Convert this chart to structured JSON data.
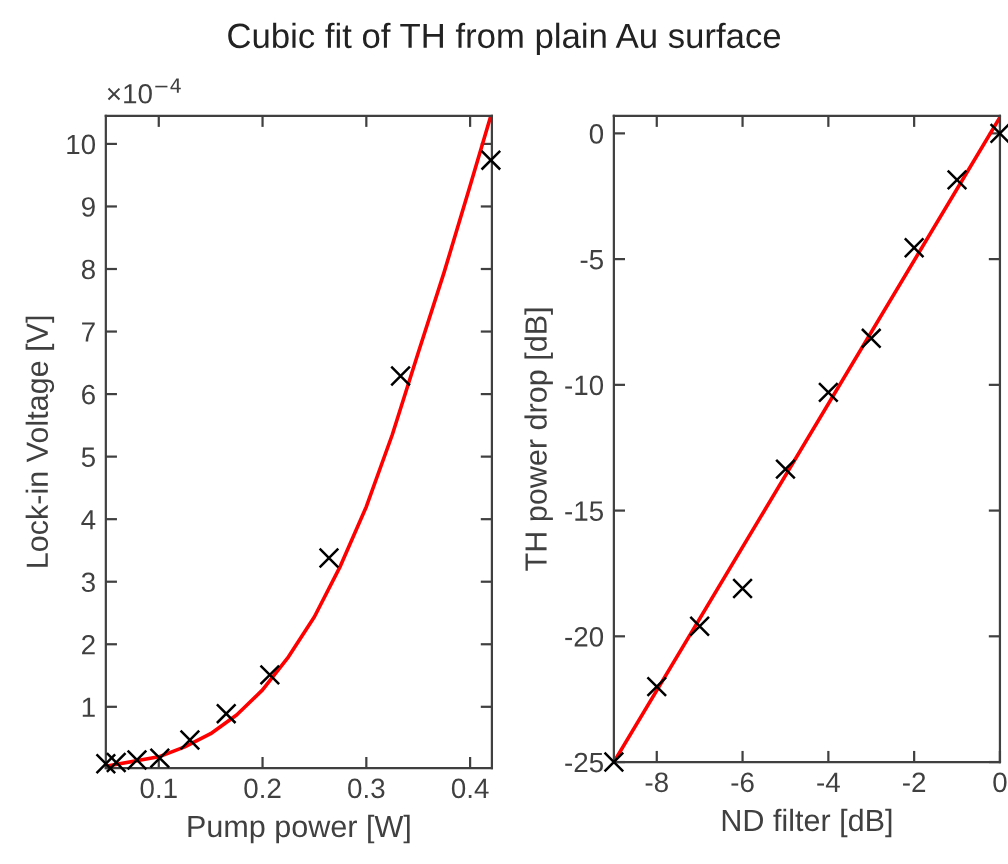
{
  "chart_data": [
    {
      "type": "scatter",
      "title": "Cubic fit of TH from plain Au surface",
      "xlabel": "Pump power [W]",
      "ylabel": "Lock-in Voltage [V]",
      "annotations": [
        "×10$^{−4}$"
      ],
      "xlim": [
        0.049,
        0.421
      ],
      "xticks": [
        0.1,
        0.2,
        0.3,
        0.4
      ],
      "ylim": [
        0.02,
        10.45
      ],
      "yticks": [
        1,
        2,
        3,
        4,
        5,
        6,
        7,
        8,
        9,
        10
      ],
      "grid": false,
      "series": [
        {
          "marker": "cross",
          "color": "#000000",
          "x": [
            0.049,
            0.059,
            0.079,
            0.101,
            0.13,
            0.165,
            0.207,
            0.264,
            0.333,
            0.42
          ],
          "values": [
            0.09,
            0.11,
            0.15,
            0.18,
            0.47,
            0.89,
            1.51,
            3.38,
            6.29,
            9.74
          ]
        },
        {
          "type": "line",
          "color": "#ff0000",
          "x": [
            0.049,
            0.1,
            0.125,
            0.15,
            0.175,
            0.2,
            0.225,
            0.25,
            0.275,
            0.3,
            0.325,
            0.35,
            0.375,
            0.4,
            0.42
          ],
          "values": [
            0.05,
            0.2,
            0.36,
            0.57,
            0.87,
            1.27,
            1.8,
            2.44,
            3.25,
            4.2,
            5.35,
            6.66,
            7.95,
            9.33,
            10.45
          ]
        }
      ]
    },
    {
      "type": "scatter",
      "xlabel": "ND filter [dB]",
      "ylabel": "TH power drop [dB]",
      "xlim": [
        -9,
        0
      ],
      "xticks": [
        -8,
        -6,
        -4,
        -2,
        0
      ],
      "ylim": [
        -25,
        0.7
      ],
      "yticks": [
        -25,
        -20,
        -15,
        -10,
        -5,
        0
      ],
      "grid": false,
      "series": [
        {
          "marker": "cross",
          "color": "#000000",
          "x": [
            -9,
            -8,
            -7,
            -6,
            -5,
            -4,
            -3,
            -2,
            -1,
            0
          ],
          "values": [
            -25,
            -22.0,
            -19.6,
            -18.1,
            -13.35,
            -10.3,
            -8.15,
            -4.55,
            -1.85,
            0
          ]
        },
        {
          "type": "line",
          "color": "#ff0000",
          "x": [
            -9,
            0
          ],
          "values": [
            -25,
            0.64
          ]
        }
      ]
    }
  ]
}
